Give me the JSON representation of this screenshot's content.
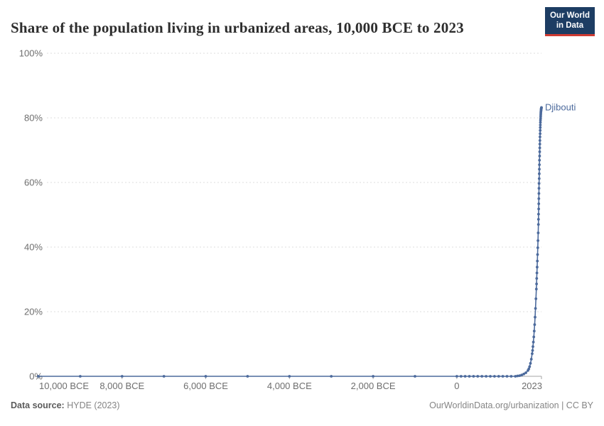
{
  "header": {
    "title": "Share of the population living in urbanized areas, 10,000 BCE to 2023",
    "logo": {
      "line1": "Our World",
      "line2": "in Data"
    }
  },
  "footer": {
    "source_label": "Data source:",
    "source_value": " HYDE (2023)",
    "right_text": "OurWorldinData.org/urbanization | CC BY"
  },
  "colors": {
    "line": "#4c6a9c",
    "logo_bg": "#1d3d63",
    "logo_red": "#cf3b32",
    "grid": "#dcdcdc",
    "axis": "#a5a5a5",
    "tick_text": "#6e6e6e",
    "title_text": "#2d2d2d",
    "footer_text": "#858585"
  },
  "chart_data": {
    "type": "line",
    "title": "Share of the population living in urbanized areas, 10,000 BCE to 2023",
    "xlabel": "",
    "ylabel": "",
    "xlim": [
      -10000,
      2023
    ],
    "ylim": [
      0,
      100
    ],
    "grid": "horizontal-dashed",
    "legend_position": "end-of-line-label",
    "x_ticks": [
      {
        "value": -10000,
        "label": "10,000 BCE"
      },
      {
        "value": -8000,
        "label": "8,000 BCE"
      },
      {
        "value": -6000,
        "label": "6,000 BCE"
      },
      {
        "value": -4000,
        "label": "4,000 BCE"
      },
      {
        "value": -2000,
        "label": "2,000 BCE"
      },
      {
        "value": 0,
        "label": "0"
      },
      {
        "value": 2023,
        "label": "2023"
      }
    ],
    "y_ticks": [
      {
        "value": 0,
        "label": "0%"
      },
      {
        "value": 20,
        "label": "20%"
      },
      {
        "value": 40,
        "label": "40%"
      },
      {
        "value": 60,
        "label": "60%"
      },
      {
        "value": 80,
        "label": "80%"
      },
      {
        "value": 100,
        "label": "100%"
      }
    ],
    "series": [
      {
        "name": "Djibouti",
        "color": "#4c6a9c",
        "points": [
          [
            -10000,
            0
          ],
          [
            -9000,
            0
          ],
          [
            -8000,
            0
          ],
          [
            -7000,
            0
          ],
          [
            -6000,
            0
          ],
          [
            -5000,
            0
          ],
          [
            -4000,
            0
          ],
          [
            -3000,
            0
          ],
          [
            -2000,
            0
          ],
          [
            -1000,
            0
          ],
          [
            0,
            0
          ],
          [
            100,
            0
          ],
          [
            200,
            0
          ],
          [
            300,
            0
          ],
          [
            400,
            0
          ],
          [
            500,
            0
          ],
          [
            600,
            0
          ],
          [
            700,
            0
          ],
          [
            800,
            0
          ],
          [
            900,
            0
          ],
          [
            1000,
            0
          ],
          [
            1100,
            0
          ],
          [
            1200,
            0
          ],
          [
            1300,
            0
          ],
          [
            1400,
            0
          ],
          [
            1450,
            0.1
          ],
          [
            1500,
            0.2
          ],
          [
            1550,
            0.4
          ],
          [
            1600,
            0.7
          ],
          [
            1650,
            1.1
          ],
          [
            1700,
            1.8
          ],
          [
            1720,
            2.3
          ],
          [
            1740,
            3
          ],
          [
            1760,
            4
          ],
          [
            1780,
            5.3
          ],
          [
            1800,
            7
          ],
          [
            1810,
            8
          ],
          [
            1820,
            9.2
          ],
          [
            1830,
            10.6
          ],
          [
            1840,
            12.2
          ],
          [
            1850,
            14
          ],
          [
            1860,
            16
          ],
          [
            1870,
            18.3
          ],
          [
            1880,
            21
          ],
          [
            1890,
            24
          ],
          [
            1900,
            27
          ],
          [
            1905,
            28.6
          ],
          [
            1910,
            30.3
          ],
          [
            1915,
            32
          ],
          [
            1920,
            33.8
          ],
          [
            1925,
            35.7
          ],
          [
            1930,
            37.7
          ],
          [
            1935,
            39.8
          ],
          [
            1940,
            42
          ],
          [
            1945,
            44.4
          ],
          [
            1950,
            47
          ],
          [
            1952,
            48.6
          ],
          [
            1954,
            50.2
          ],
          [
            1956,
            51.8
          ],
          [
            1958,
            53.4
          ],
          [
            1960,
            55
          ],
          [
            1962,
            56.6
          ],
          [
            1964,
            58.2
          ],
          [
            1966,
            59.7
          ],
          [
            1968,
            61.2
          ],
          [
            1970,
            62.7
          ],
          [
            1972,
            64.1
          ],
          [
            1974,
            65.5
          ],
          [
            1976,
            66.9
          ],
          [
            1978,
            68.2
          ],
          [
            1980,
            69.5
          ],
          [
            1982,
            70.7
          ],
          [
            1984,
            71.9
          ],
          [
            1986,
            73
          ],
          [
            1988,
            74.1
          ],
          [
            1990,
            75.1
          ],
          [
            1992,
            76.1
          ],
          [
            1994,
            77
          ],
          [
            1996,
            77.8
          ],
          [
            1998,
            78.6
          ],
          [
            2000,
            79.3
          ],
          [
            2002,
            79.9
          ],
          [
            2004,
            80.5
          ],
          [
            2006,
            81
          ],
          [
            2008,
            81.5
          ],
          [
            2010,
            81.9
          ],
          [
            2012,
            82.2
          ],
          [
            2014,
            82.5
          ],
          [
            2016,
            82.7
          ],
          [
            2018,
            82.9
          ],
          [
            2020,
            83
          ],
          [
            2022,
            83.1
          ],
          [
            2023,
            83.2
          ]
        ]
      }
    ]
  }
}
